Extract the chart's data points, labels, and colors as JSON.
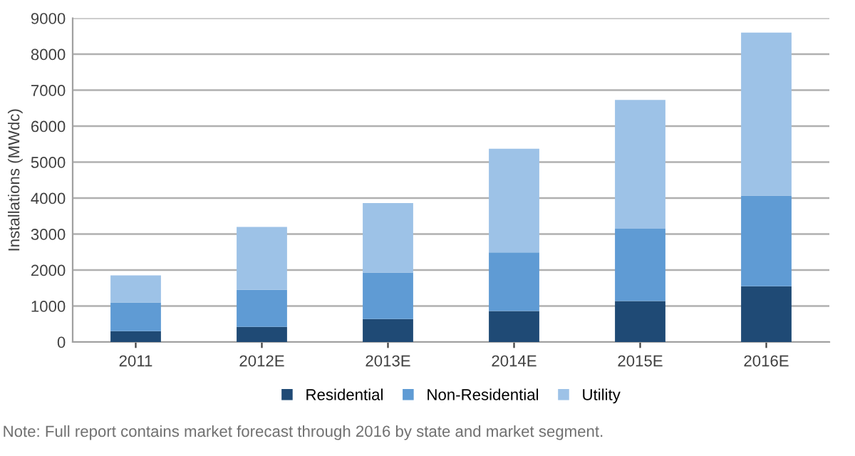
{
  "chart_data": {
    "type": "bar",
    "stacked": true,
    "ylabel": "Installations (MWdc)",
    "categories": [
      "2011",
      "2012E",
      "2013E",
      "2014E",
      "2015E",
      "2016E"
    ],
    "series": [
      {
        "name": "Residential",
        "color": "#1f4a75",
        "values": [
          300,
          420,
          640,
          860,
          1140,
          1550
        ]
      },
      {
        "name": "Non-Residential",
        "color": "#5f9bd4",
        "values": [
          800,
          1030,
          1290,
          1630,
          2010,
          2520
        ]
      },
      {
        "name": "Utility",
        "color": "#9dc2e7",
        "values": [
          750,
          1750,
          1930,
          2880,
          3580,
          4530
        ]
      }
    ],
    "ylim": [
      0,
      9000
    ],
    "yticks": [
      0,
      1000,
      2000,
      3000,
      4000,
      5000,
      6000,
      7000,
      8000,
      9000
    ],
    "grid": "y",
    "legend": "bottom",
    "annotations": [
      "Note: Full report contains market forecast through 2016 by state and market segment."
    ]
  }
}
